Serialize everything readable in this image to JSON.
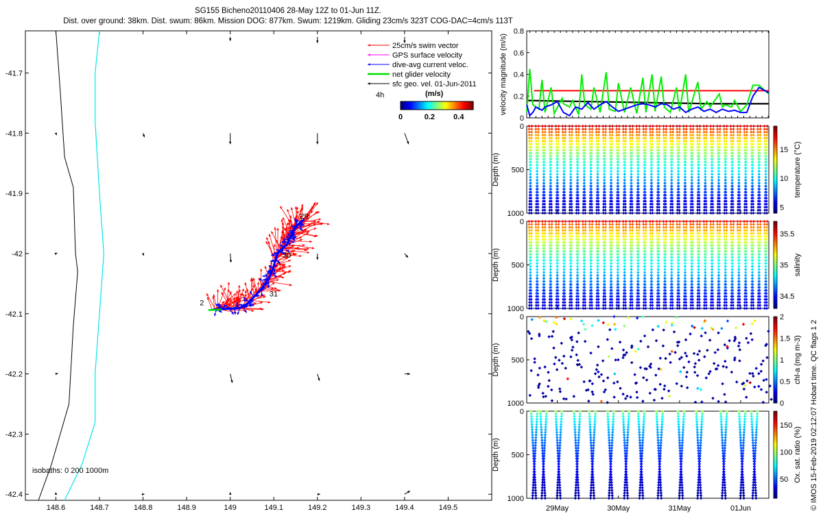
{
  "header": {
    "title": "SG155 Bicheno20110406 28-May 12Z to 01-Jun 11Z.",
    "subtitle": "Dist. over ground: 38km. Dist. swum: 86km. Mission DOG: 877km. Swum: 1219km. Gliding 23cm/s 323T COG-DAC=4cm/s 113T"
  },
  "credit": "© IMOS 15-Feb-2019 02:12:07 Hobart time. QC flags 1  2",
  "colors": {
    "swim": "#ff0000",
    "gps": "#ff00ff",
    "dac": "#0000ff",
    "net": "#00dd00",
    "sfc": "#000000",
    "coast": "#000000",
    "isobath": "#00e5ee"
  },
  "chart_data": [
    {
      "id": "map",
      "type": "scatter",
      "xlim": [
        148.53,
        149.6
      ],
      "ylim": [
        -42.41,
        -41.63
      ],
      "xticks": [
        "148.6",
        "148.7",
        "148.8",
        "148.9",
        "149",
        "149.1",
        "149.2",
        "149.3",
        "149.4",
        "149.5"
      ],
      "yticks": [
        "-41.7",
        "-41.8",
        "-41.9",
        "-42",
        "-42.1",
        "-42.2",
        "-42.3",
        "-42.4"
      ],
      "legend": {
        "placement": "top-right",
        "entries": [
          "25cm/s swim vector",
          "GPS surface velocity",
          "dive-avg current veloc.",
          "net glider velocity",
          "sfc geo. vel. 01-Jun-2011"
        ],
        "time_label": "4h",
        "colorbar_label": "(m/s)",
        "colorbar_ticks": [
          "0",
          "0.2",
          "0.4"
        ]
      },
      "isobaths_label": "isobaths: 0   200  1000m",
      "day_labels": [
        {
          "text": "2",
          "lon": 148.93,
          "lat": -42.086
        },
        {
          "text": "31",
          "lon": 149.09,
          "lat": -42.071
        },
        {
          "text": "30",
          "lon": 149.12,
          "lat": -42.007
        },
        {
          "text": "29",
          "lon": 149.16,
          "lat": -41.942
        }
      ],
      "coastline": [
        [
          148.6,
          -41.63
        ],
        [
          148.61,
          -41.73
        ],
        [
          148.62,
          -41.84
        ],
        [
          148.64,
          -41.89
        ],
        [
          148.645,
          -42.0
        ],
        [
          148.65,
          -42.03
        ],
        [
          148.64,
          -42.12
        ],
        [
          148.63,
          -42.25
        ],
        [
          148.59,
          -42.35
        ],
        [
          148.56,
          -42.41
        ]
      ],
      "isobath": [
        [
          148.7,
          -41.63
        ],
        [
          148.69,
          -41.7
        ],
        [
          148.69,
          -41.78
        ],
        [
          148.7,
          -41.9
        ],
        [
          148.71,
          -42.0
        ],
        [
          148.7,
          -42.1
        ],
        [
          148.69,
          -42.2
        ],
        [
          148.69,
          -42.28
        ],
        [
          148.66,
          -42.35
        ],
        [
          148.62,
          -42.41
        ]
      ],
      "track": [
        [
          148.96,
          -42.093
        ],
        [
          148.99,
          -42.092
        ],
        [
          149.02,
          -42.091
        ],
        [
          149.04,
          -42.083
        ],
        [
          149.07,
          -42.06
        ],
        [
          149.09,
          -42.04
        ],
        [
          149.1,
          -42.02
        ],
        [
          149.11,
          -41.998
        ],
        [
          149.13,
          -41.985
        ],
        [
          149.14,
          -41.97
        ],
        [
          149.15,
          -41.955
        ],
        [
          149.17,
          -41.943
        ]
      ],
      "net_velocity": [
        [
          148.95,
          -42.094
        ],
        [
          148.98,
          -42.093
        ]
      ],
      "sfc_velocity": [
        {
          "lon": 148.6,
          "lat": -41.8,
          "u": 0.01,
          "v": -0.03
        },
        {
          "lon": 148.8,
          "lat": -41.8,
          "u": 0.02,
          "v": -0.06
        },
        {
          "lon": 149.0,
          "lat": -41.8,
          "u": 0.0,
          "v": -0.16
        },
        {
          "lon": 149.2,
          "lat": -41.8,
          "u": 0.0,
          "v": -0.16
        },
        {
          "lon": 149.4,
          "lat": -41.8,
          "u": 0.06,
          "v": -0.16
        },
        {
          "lon": 149.0,
          "lat": -41.64,
          "u": 0.0,
          "v": -0.06
        },
        {
          "lon": 149.2,
          "lat": -41.64,
          "u": 0.0,
          "v": -0.09
        },
        {
          "lon": 149.4,
          "lat": -41.64,
          "u": 0.0,
          "v": -0.09
        },
        {
          "lon": 148.6,
          "lat": -42.0,
          "u": 0.02,
          "v": 0.01
        },
        {
          "lon": 148.8,
          "lat": -42.0,
          "u": 0.01,
          "v": -0.03
        },
        {
          "lon": 149.0,
          "lat": -42.0,
          "u": 0.01,
          "v": -0.13
        },
        {
          "lon": 149.2,
          "lat": -42.0,
          "u": 0.0,
          "v": -0.09
        },
        {
          "lon": 149.4,
          "lat": -42.0,
          "u": 0.05,
          "v": -0.06
        },
        {
          "lon": 148.6,
          "lat": -42.2,
          "u": 0.03,
          "v": 0.01
        },
        {
          "lon": 149.0,
          "lat": -42.2,
          "u": 0.03,
          "v": -0.13
        },
        {
          "lon": 149.2,
          "lat": -42.2,
          "u": 0.03,
          "v": -0.1
        },
        {
          "lon": 149.4,
          "lat": -42.2,
          "u": 0.08,
          "v": 0.0
        },
        {
          "lon": 148.6,
          "lat": -42.4,
          "u": 0.0,
          "v": 0.03
        },
        {
          "lon": 148.8,
          "lat": -42.4,
          "u": 0.02,
          "v": 0.0
        },
        {
          "lon": 149.0,
          "lat": -42.4,
          "u": 0.0,
          "v": 0.03
        },
        {
          "lon": 149.2,
          "lat": -42.4,
          "u": 0.04,
          "v": 0.0
        },
        {
          "lon": 149.4,
          "lat": -42.4,
          "u": 0.08,
          "v": 0.05
        }
      ]
    },
    {
      "id": "velocity",
      "type": "line",
      "ylabel": "velocity magnitude (m/s)",
      "ylim": [
        0,
        0.8
      ],
      "yticks": [
        "0",
        "0.2",
        "0.4",
        "0.6",
        "0.8"
      ],
      "x_day_range": [
        28.5,
        32.46
      ],
      "series": [
        {
          "color": "#ff0000",
          "points": [
            [
              28.62,
              0.25
            ],
            [
              32.46,
              0.25
            ]
          ]
        },
        {
          "color": "#000000",
          "points": [
            [
              28.5,
              0.16
            ],
            [
              29.5,
              0.15
            ],
            [
              30.5,
              0.14
            ],
            [
              31.5,
              0.13
            ],
            [
              32.46,
              0.13
            ]
          ]
        },
        {
          "color": "#00ee00",
          "points": [
            [
              28.5,
              0.05
            ],
            [
              28.55,
              0.45
            ],
            [
              28.6,
              0.12
            ],
            [
              28.7,
              0.08
            ],
            [
              28.75,
              0.35
            ],
            [
              28.8,
              0.05
            ],
            [
              28.9,
              0.28
            ],
            [
              28.95,
              0.04
            ],
            [
              29.08,
              0.18
            ],
            [
              29.1,
              0.13
            ],
            [
              29.2,
              0.1
            ],
            [
              29.25,
              0.16
            ],
            [
              29.35,
              0.03
            ],
            [
              29.4,
              0.4
            ],
            [
              29.45,
              0.12
            ],
            [
              29.55,
              0.08
            ],
            [
              29.6,
              0.28
            ],
            [
              29.7,
              0.05
            ],
            [
              29.8,
              0.42
            ],
            [
              29.85,
              0.08
            ],
            [
              29.95,
              0.06
            ],
            [
              30.0,
              0.32
            ],
            [
              30.1,
              0.05
            ],
            [
              30.2,
              0.28
            ],
            [
              30.3,
              0.04
            ],
            [
              30.4,
              0.37
            ],
            [
              30.45,
              0.05
            ],
            [
              30.55,
              0.4
            ],
            [
              30.6,
              0.06
            ],
            [
              30.7,
              0.38
            ],
            [
              30.75,
              0.1
            ],
            [
              30.85,
              0.05
            ],
            [
              30.95,
              0.28
            ],
            [
              31.0,
              0.06
            ],
            [
              31.1,
              0.4
            ],
            [
              31.15,
              0.05
            ],
            [
              31.3,
              0.33
            ],
            [
              31.35,
              0.08
            ],
            [
              31.45,
              0.15
            ],
            [
              31.5,
              0.1
            ],
            [
              31.65,
              0.22
            ],
            [
              31.7,
              0.1
            ],
            [
              31.75,
              0.12
            ],
            [
              31.85,
              0.1
            ],
            [
              31.9,
              0.16
            ],
            [
              32.0,
              0.06
            ],
            [
              32.1,
              0.12
            ],
            [
              32.2,
              0.3
            ],
            [
              32.3,
              0.3
            ],
            [
              32.46,
              0.22
            ]
          ]
        },
        {
          "color": "#0000ff",
          "points": [
            [
              28.5,
              0.12
            ],
            [
              28.55,
              0.02
            ],
            [
              28.6,
              0.05
            ],
            [
              28.65,
              0.1
            ],
            [
              28.75,
              0.07
            ],
            [
              28.8,
              0.1
            ],
            [
              28.9,
              0.12
            ],
            [
              29.0,
              0.15
            ],
            [
              29.1,
              0.05
            ],
            [
              29.2,
              0.02
            ],
            [
              29.3,
              0.1
            ],
            [
              29.4,
              0.08
            ],
            [
              29.5,
              0.14
            ],
            [
              29.6,
              0.08
            ],
            [
              29.7,
              0.12
            ],
            [
              29.8,
              0.15
            ],
            [
              29.9,
              0.1
            ],
            [
              30.0,
              0.06
            ],
            [
              30.1,
              0.08
            ],
            [
              30.2,
              0.1
            ],
            [
              30.3,
              0.12
            ],
            [
              30.4,
              0.13
            ],
            [
              30.5,
              0.12
            ],
            [
              30.6,
              0.1
            ],
            [
              30.7,
              0.13
            ],
            [
              30.8,
              0.12
            ],
            [
              30.9,
              0.08
            ],
            [
              31.0,
              0.1
            ],
            [
              31.1,
              0.05
            ],
            [
              31.2,
              0.08
            ],
            [
              31.3,
              0.1
            ],
            [
              31.4,
              0.06
            ],
            [
              31.5,
              0.08
            ],
            [
              31.6,
              0.05
            ],
            [
              31.7,
              0.08
            ],
            [
              31.8,
              0.06
            ],
            [
              31.9,
              0.07
            ],
            [
              32.0,
              0.05
            ],
            [
              32.1,
              0.05
            ],
            [
              32.2,
              0.2
            ],
            [
              32.3,
              0.28
            ],
            [
              32.46,
              0.23
            ]
          ]
        }
      ]
    },
    {
      "id": "temperature",
      "type": "scatter",
      "ylabel": "Depth (m)",
      "clabel": "temperature (°C)",
      "ylim": [
        1000,
        0
      ],
      "yticks": [
        "0",
        "500",
        "1000"
      ],
      "crange": [
        4,
        19
      ],
      "cticks": [
        "5",
        "10",
        "15"
      ],
      "cticks_val": [
        5,
        10,
        15
      ],
      "surface_value": 17.5,
      "deep_value": 4.5,
      "surface_depth": 0,
      "bottom_depth": 1000,
      "dives": 36
    },
    {
      "id": "salinity",
      "type": "scatter",
      "ylabel": "Depth (m)",
      "clabel": "salinity",
      "ylim": [
        1000,
        0
      ],
      "yticks": [
        "0",
        "500",
        "1000"
      ],
      "crange": [
        34.3,
        35.7
      ],
      "cticks": [
        "34.5",
        "35",
        "35.5"
      ],
      "cticks_val": [
        34.5,
        35,
        35.5
      ],
      "surface_value": 35.5,
      "deep_value": 34.4,
      "surface_depth": 0,
      "bottom_depth": 1000,
      "dives": 36
    },
    {
      "id": "chla",
      "type": "scatter",
      "ylabel": "Depth (m)",
      "clabel": "chl-a (mg m-3)",
      "ylim": [
        1000,
        0
      ],
      "yticks": [
        "0",
        "500",
        "1000"
      ],
      "crange": [
        0,
        2
      ],
      "cticks": [
        "0",
        "0.5",
        "1",
        "1.5",
        "2"
      ],
      "cticks_val": [
        0,
        0.5,
        1,
        1.5,
        2
      ],
      "surface_value": 1.0,
      "deep_value": 0.02,
      "surface_depth": 0,
      "bottom_depth": 1000,
      "dives": 36,
      "sparse": true
    },
    {
      "id": "oxsat",
      "type": "scatter",
      "ylabel": "Depth (m)",
      "clabel": "Ox. sat. ratio (%)",
      "ylim": [
        1000,
        0
      ],
      "yticks": [
        "0",
        "500",
        "1000"
      ],
      "crange": [
        15,
        175
      ],
      "cticks": [
        "50",
        "100",
        "150"
      ],
      "cticks_val": [
        50,
        100,
        150
      ],
      "surface_value": 100,
      "deep_value": 20,
      "surface_depth": 0,
      "bottom_depth": 1000,
      "dives": 12,
      "dive_days": [
        28.6,
        28.75,
        29.0,
        29.3,
        29.55,
        29.85,
        30.1,
        30.35,
        30.65,
        31.0,
        31.3,
        31.7,
        32.0,
        32.2
      ]
    }
  ],
  "time_axis": {
    "day_range": [
      28.5,
      32.46
    ],
    "labels": [
      {
        "text": "29May",
        "day": 29
      },
      {
        "text": "30May",
        "day": 30
      },
      {
        "text": "31May",
        "day": 31
      },
      {
        "text": "01Jun",
        "day": 32
      }
    ]
  }
}
